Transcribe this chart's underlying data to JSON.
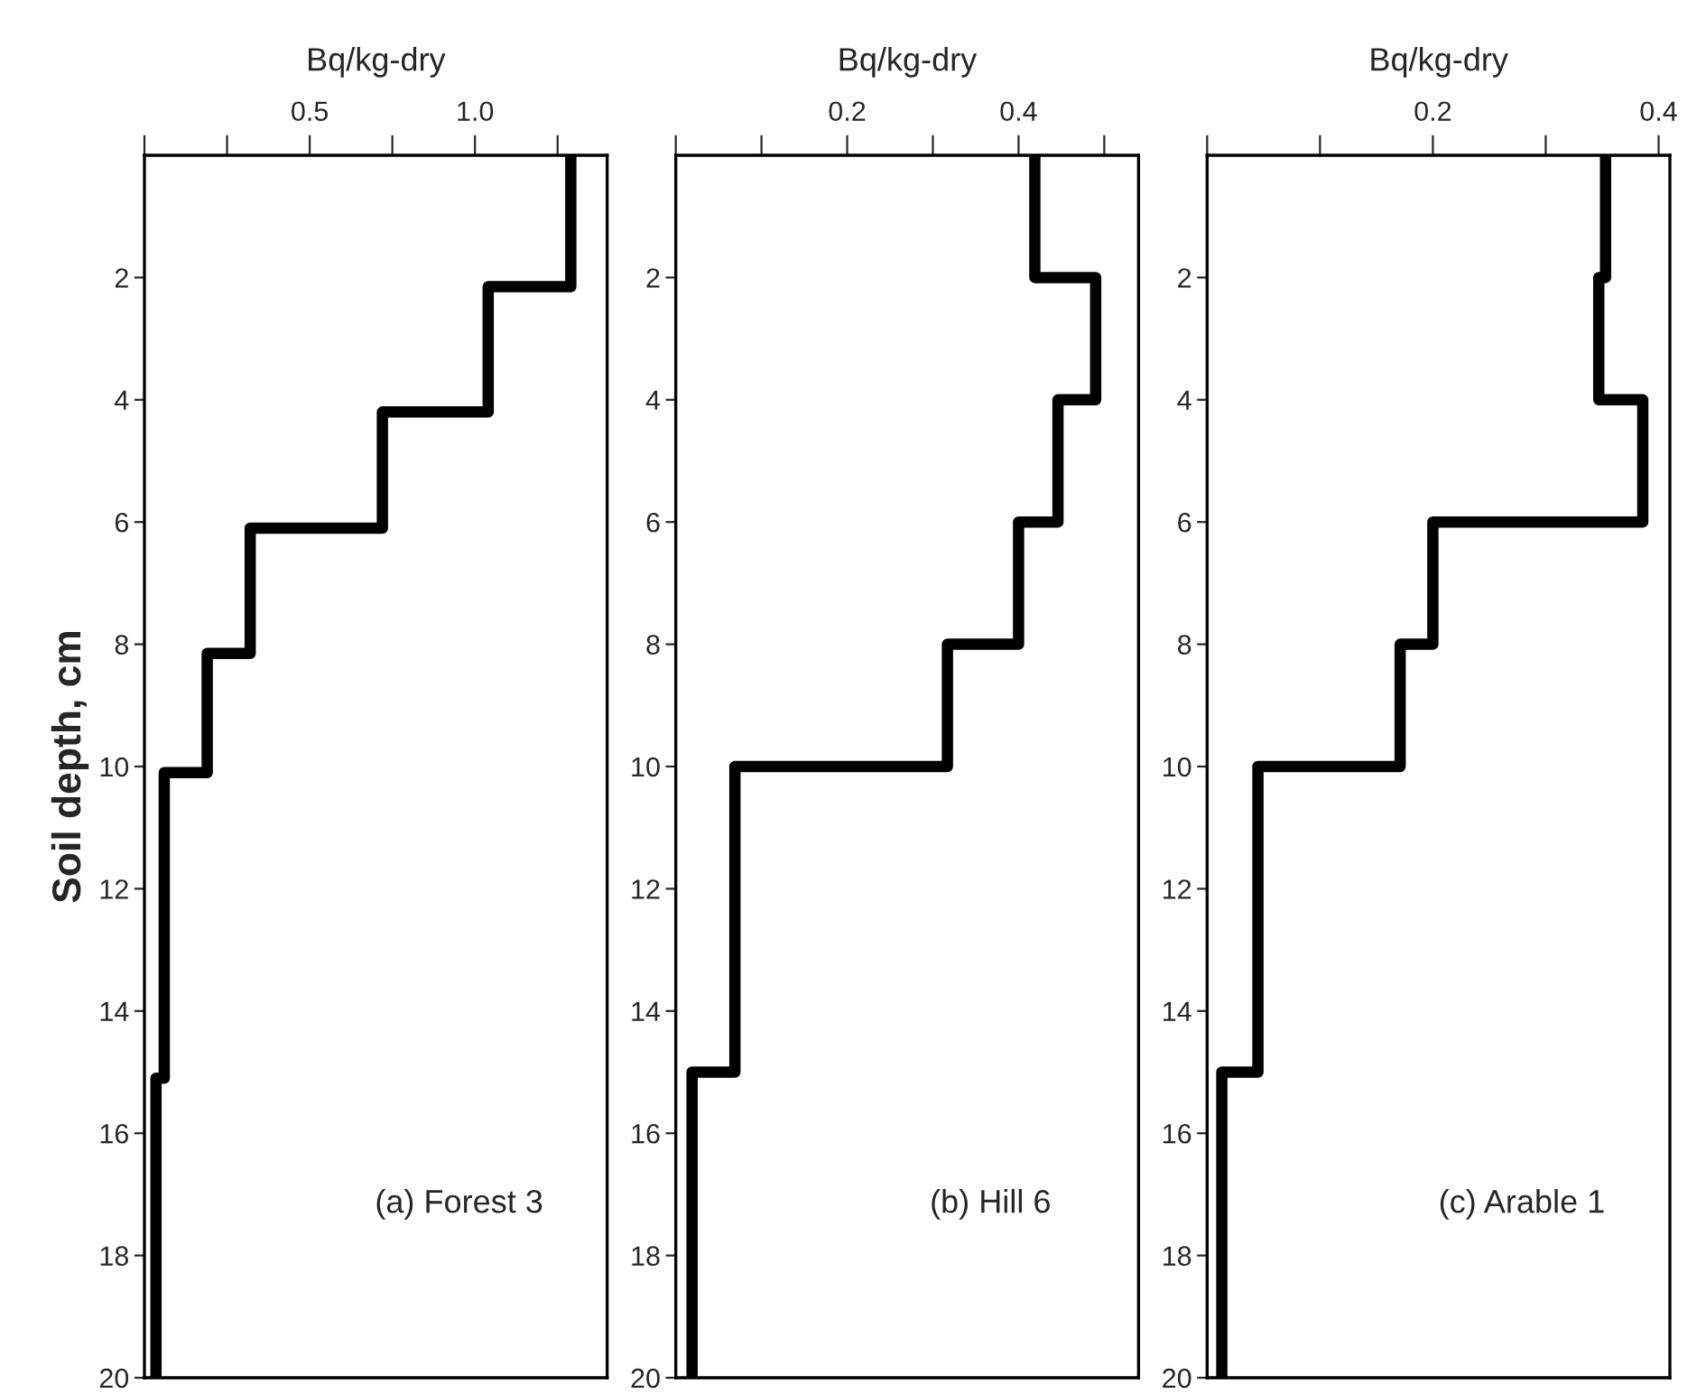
{
  "chart_data": [
    {
      "type": "line",
      "xlabel": "Bq/kg-dry",
      "ylabel": "Soil depth, cm",
      "annotations": [
        "(a) Forest 3"
      ],
      "xlim": [
        0,
        1.4
      ],
      "xticks": [
        {
          "value": 0,
          "label": null
        },
        {
          "value": 0.25,
          "label": null
        },
        {
          "value": 0.5,
          "label": "0.5"
        },
        {
          "value": 0.75,
          "label": null
        },
        {
          "value": 1.0,
          "label": "1.0"
        },
        {
          "value": 1.25,
          "label": null
        }
      ],
      "ylim": [
        20,
        0
      ],
      "yticks": [
        2,
        4,
        6,
        8,
        10,
        12,
        14,
        16,
        18,
        20
      ],
      "grid": false,
      "marker": "none",
      "line_style": "solid",
      "series": [
        {
          "color": "#000000",
          "x": [
            1.29,
            1.29,
            1.04,
            1.04,
            0.72,
            0.72,
            0.32,
            0.32,
            0.19,
            0.19,
            0.06,
            0.06,
            0.035,
            0.035
          ],
          "values": [
            0,
            2.15,
            2.15,
            4.2,
            4.2,
            6.1,
            6.1,
            8.15,
            8.15,
            10.1,
            10.1,
            15.1,
            15.1,
            20
          ]
        }
      ]
    },
    {
      "type": "line",
      "xlabel": "Bq/kg-dry",
      "annotations": [
        "(b) Hill 6"
      ],
      "xlim": [
        0,
        0.54
      ],
      "xticks": [
        {
          "value": 0,
          "label": null
        },
        {
          "value": 0.1,
          "label": null
        },
        {
          "value": 0.2,
          "label": "0.2"
        },
        {
          "value": 0.3,
          "label": null
        },
        {
          "value": 0.4,
          "label": "0.4"
        },
        {
          "value": 0.5,
          "label": null
        }
      ],
      "ylim": [
        20,
        0
      ],
      "yticks": [
        2,
        4,
        6,
        8,
        10,
        12,
        14,
        16,
        18,
        20
      ],
      "grid": false,
      "marker": "none",
      "line_style": "solid",
      "series": [
        {
          "color": "#000000",
          "x": [
            0.419,
            0.419,
            0.49,
            0.49,
            0.446,
            0.446,
            0.4,
            0.4,
            0.317,
            0.317,
            0.069,
            0.069,
            0.019,
            0.019
          ],
          "values": [
            0,
            2,
            2,
            4,
            4,
            6,
            6,
            8,
            8,
            10,
            10,
            15,
            15,
            20
          ]
        }
      ]
    },
    {
      "type": "line",
      "xlabel": "Bq/kg-dry",
      "annotations": [
        "(c) Arable 1"
      ],
      "xlim": [
        0,
        0.41
      ],
      "xticks": [
        {
          "value": 0,
          "label": null
        },
        {
          "value": 0.1,
          "label": null
        },
        {
          "value": 0.2,
          "label": "0.2"
        },
        {
          "value": 0.3,
          "label": null
        },
        {
          "value": 0.4,
          "label": "0.4"
        }
      ],
      "ylim": [
        20,
        0
      ],
      "yticks": [
        2,
        4,
        6,
        8,
        10,
        12,
        14,
        16,
        18,
        20
      ],
      "grid": false,
      "marker": "none",
      "line_style": "solid",
      "series": [
        {
          "color": "#000000",
          "x": [
            0.353,
            0.353,
            0.347,
            0.347,
            0.386,
            0.386,
            0.2,
            0.2,
            0.171,
            0.171,
            0.045,
            0.045,
            0.013,
            0.013
          ],
          "values": [
            0,
            2,
            2,
            4,
            4,
            6,
            6,
            8,
            8,
            10,
            10,
            15,
            15,
            20
          ]
        }
      ]
    }
  ]
}
